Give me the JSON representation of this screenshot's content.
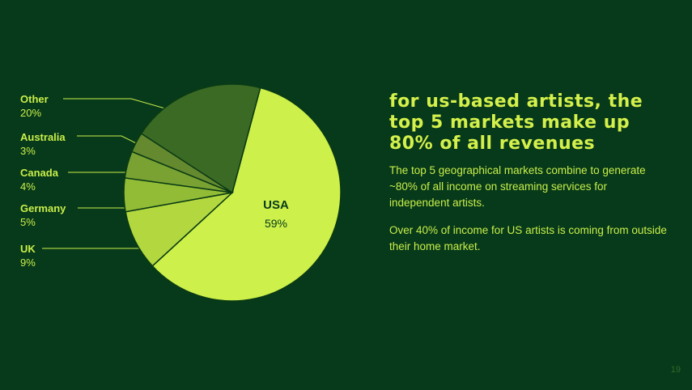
{
  "headline": "For US-based artists, the top 5 markets make up 80% of all revenues",
  "paragraphs": {
    "p1": "The top 5 geographical markets combine to generate ~80% of all income on streaming services for independent artists.",
    "p2": "Over 40% of income for US artists is coming from outside their home market."
  },
  "page_number": "19",
  "colors": {
    "background": "#073a1a",
    "accent": "#d4f04b"
  },
  "chart_data": {
    "type": "pie",
    "slices": [
      {
        "name": "USA",
        "value": 59,
        "label": "59%",
        "color": "#cdf04a"
      },
      {
        "name": "UK",
        "value": 9,
        "label": "9%",
        "color": "#b3d83f"
      },
      {
        "name": "Germany",
        "value": 5,
        "label": "5%",
        "color": "#92bc36"
      },
      {
        "name": "Canada",
        "value": 4,
        "label": "4%",
        "color": "#79a232"
      },
      {
        "name": "Australia",
        "value": 3,
        "label": "3%",
        "color": "#65892e"
      },
      {
        "name": "Other",
        "value": 20,
        "label": "20%",
        "color": "#3b6a25"
      }
    ],
    "start_angle_deg": 15,
    "direction": "clockwise"
  }
}
